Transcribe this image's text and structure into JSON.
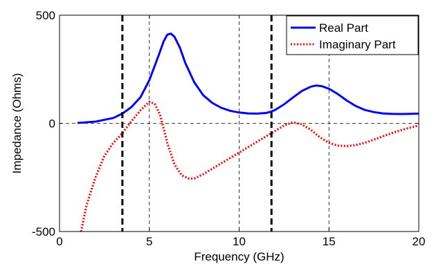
{
  "chart_data": {
    "type": "line",
    "xlabel": "Frequency (GHz)",
    "ylabel": "Impedance (Ohms)",
    "xlim": [
      0,
      20
    ],
    "ylim": [
      -500,
      500
    ],
    "x_ticks": [
      0,
      5,
      10,
      15,
      20
    ],
    "y_ticks": [
      -500,
      0,
      500
    ],
    "x_tick_labels": [
      "0",
      "5",
      "10",
      "15",
      "20"
    ],
    "y_tick_labels": [
      "-500",
      "0",
      "500"
    ],
    "grid": "dashed",
    "legend_position": "top-right",
    "vertical_markers": [
      3.5,
      11.8
    ],
    "series": [
      {
        "name": "Real Part",
        "color": "#0000ff",
        "style": "solid",
        "x": [
          1.0,
          2.0,
          3.0,
          3.5,
          4.0,
          4.5,
          5.0,
          5.5,
          5.8,
          6.0,
          6.2,
          6.4,
          6.7,
          7.0,
          7.5,
          8.0,
          8.5,
          9.0,
          9.5,
          10.0,
          10.5,
          11.0,
          11.5,
          11.8,
          12.0,
          12.5,
          13.0,
          13.5,
          14.0,
          14.3,
          14.6,
          15.0,
          15.5,
          16.0,
          16.5,
          17.0,
          17.5,
          18.0,
          18.5,
          19.0,
          19.5,
          20.0
        ],
        "y": [
          2,
          8,
          25,
          45,
          75,
          120,
          200,
          310,
          380,
          410,
          415,
          400,
          350,
          280,
          190,
          130,
          95,
          72,
          58,
          50,
          46,
          45,
          48,
          55,
          62,
          88,
          120,
          150,
          170,
          175,
          172,
          160,
          135,
          105,
          80,
          62,
          52,
          46,
          44,
          43,
          44,
          45
        ]
      },
      {
        "name": "Imaginary Part",
        "color": "#ff0000",
        "style": "dotted",
        "x": [
          1.2,
          1.5,
          2.0,
          2.5,
          3.0,
          3.5,
          4.0,
          4.5,
          5.0,
          5.3,
          5.6,
          6.0,
          6.4,
          6.8,
          7.2,
          7.5,
          8.0,
          8.5,
          9.0,
          9.5,
          10.0,
          10.5,
          11.0,
          11.5,
          11.8,
          12.0,
          12.5,
          13.0,
          13.5,
          14.0,
          14.5,
          15.0,
          15.5,
          16.0,
          16.5,
          17.0,
          17.5,
          18.0,
          18.5,
          19.0,
          19.5,
          20.0
        ],
        "y": [
          -500,
          -380,
          -250,
          -150,
          -90,
          -45,
          10,
          60,
          100,
          90,
          40,
          -90,
          -190,
          -240,
          -255,
          -255,
          -235,
          -210,
          -185,
          -160,
          -135,
          -110,
          -85,
          -60,
          -45,
          -35,
          -10,
          5,
          -5,
          -30,
          -65,
          -90,
          -103,
          -105,
          -100,
          -90,
          -75,
          -60,
          -45,
          -32,
          -20,
          -10
        ]
      }
    ]
  }
}
